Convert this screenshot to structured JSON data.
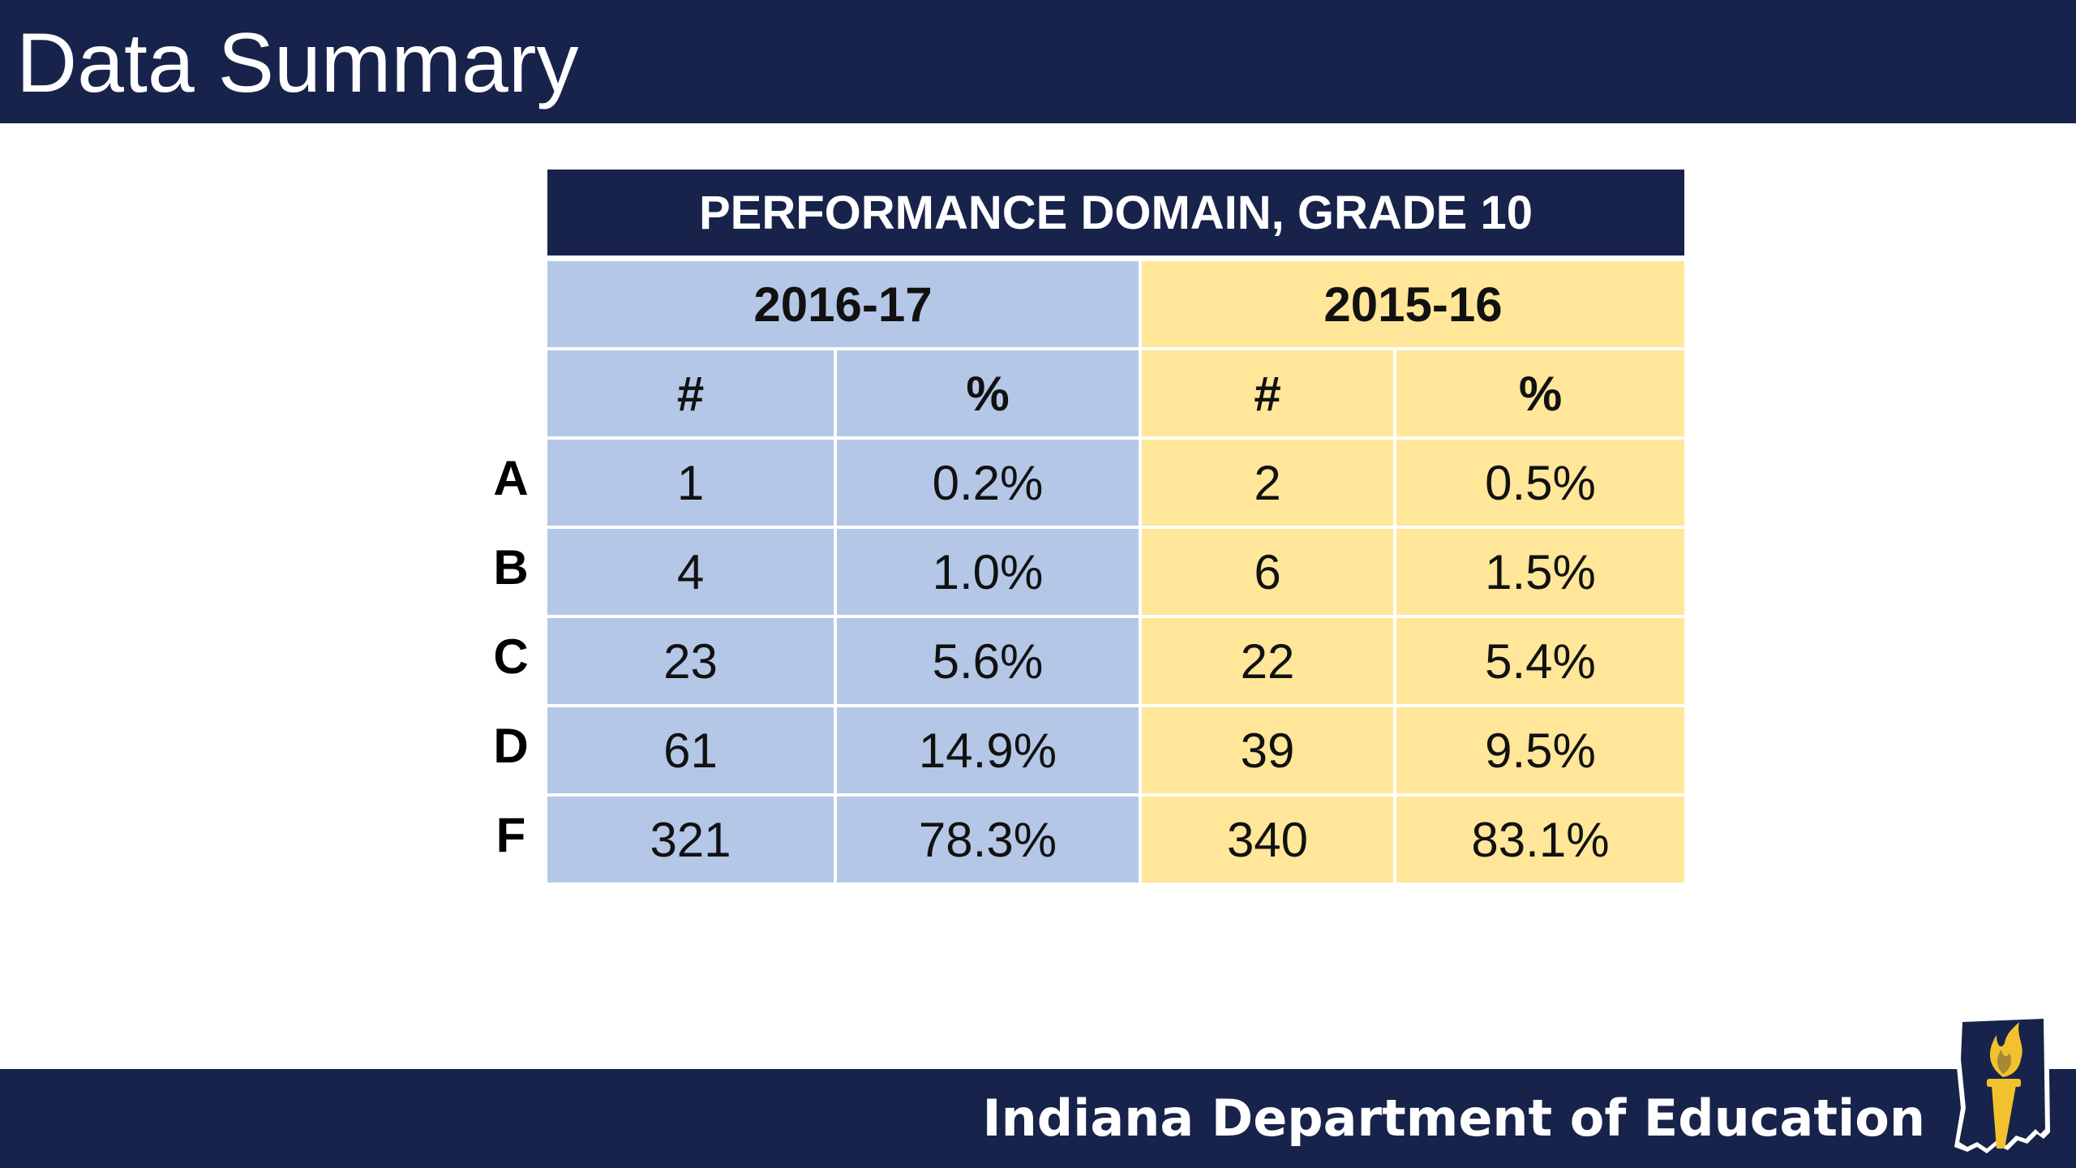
{
  "slide": {
    "title": "Data Summary"
  },
  "footer": {
    "org": "Indiana Department of Education",
    "logo_icon": "indiana-torch-logo-icon"
  },
  "table": {
    "title": "PERFORMANCE DOMAIN, GRADE 10",
    "years": [
      "2016-17",
      "2015-16"
    ],
    "col_headers": [
      "#",
      "%",
      "#",
      "%"
    ],
    "rows": [
      {
        "grade": "A",
        "count_2016_17": "1",
        "pct_2016_17": "0.2%",
        "count_2015_16": "2",
        "pct_2015_16": "0.5%"
      },
      {
        "grade": "B",
        "count_2016_17": "4",
        "pct_2016_17": "1.0%",
        "count_2015_16": "6",
        "pct_2015_16": "1.5%"
      },
      {
        "grade": "C",
        "count_2016_17": "23",
        "pct_2016_17": "5.6%",
        "count_2015_16": "22",
        "pct_2015_16": "5.4%"
      },
      {
        "grade": "D",
        "count_2016_17": "61",
        "pct_2016_17": "14.9%",
        "count_2015_16": "39",
        "pct_2015_16": "9.5%"
      },
      {
        "grade": "F",
        "count_2016_17": "321",
        "pct_2016_17": "78.3%",
        "count_2015_16": "340",
        "pct_2015_16": "83.1%"
      }
    ]
  },
  "colors": {
    "navy": "#18234b",
    "blue_fill": "#b4c7e7",
    "yellow_fill": "#ffe699",
    "gold": "#f2c12e"
  }
}
